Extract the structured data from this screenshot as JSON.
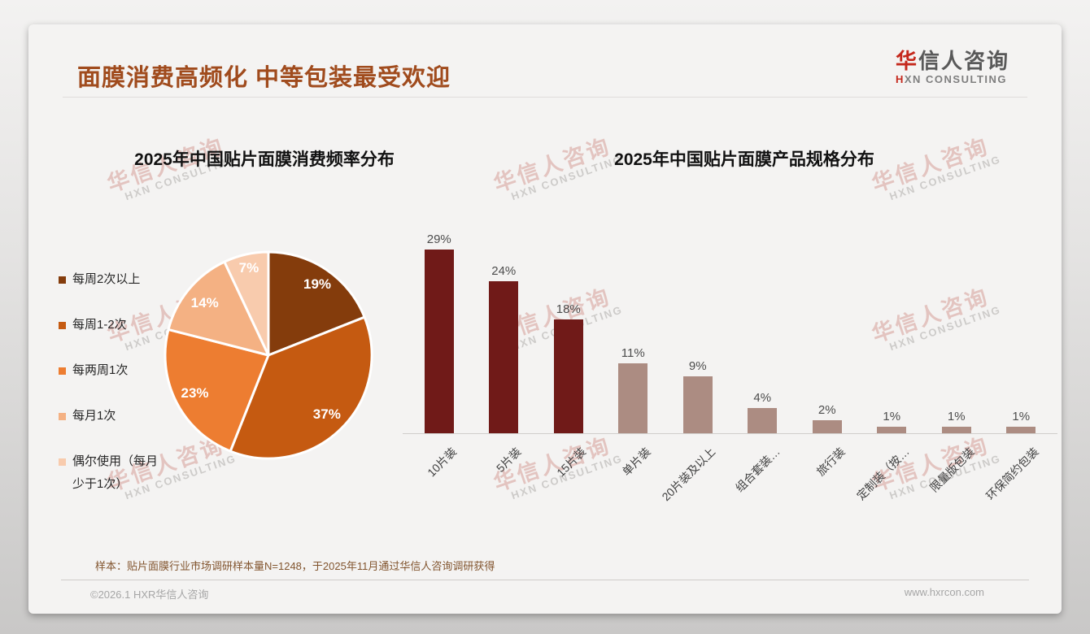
{
  "header": {
    "title": "面膜消费高频化 中等包装最受欢迎"
  },
  "logo": {
    "cn_first": "华",
    "cn_rest": "信人咨询",
    "en_first": "H",
    "en_rest": "XN CONSULTING"
  },
  "watermark": {
    "line1": "华信人咨询",
    "line2": "HXN CONSULTING"
  },
  "chart_data": [
    {
      "type": "pie",
      "title": "2025年中国贴片面膜消费频率分布",
      "labels": [
        "每周2次以上",
        "每周1-2次",
        "每两周1次",
        "每月1次",
        "偶尔使用（每月少于1次）"
      ],
      "values": [
        19,
        37,
        23,
        14,
        7
      ],
      "unit": "%",
      "colors": [
        "#843C0C",
        "#C55A11",
        "#ED7D31",
        "#F4B183",
        "#F8CBAD"
      ],
      "data_label_color": "#FFFFFF",
      "legend_position": "left",
      "start_angle_deg": 0,
      "direction": "clockwise"
    },
    {
      "type": "bar",
      "title": "2025年中国贴片面膜产品规格分布",
      "categories": [
        "10片装",
        "5片装",
        "15片装",
        "单片装",
        "20片装及以上",
        "组合套装…",
        "旅行装",
        "定制装（按…",
        "限量版包装",
        "环保简约包装"
      ],
      "values": [
        29,
        24,
        18,
        11,
        9,
        4,
        2,
        1,
        1,
        1
      ],
      "unit": "%",
      "highlight_count": 3,
      "highlight_color": "#701A18",
      "base_color": "#AC8C82",
      "value_label_color": "#4D4D4D",
      "xlabel": "",
      "ylabel": "",
      "ylim": [
        0,
        30
      ],
      "grid": false,
      "data_labels": true,
      "label_rotation_deg": 45
    }
  ],
  "footer": {
    "note": "样本：贴片面膜行业市场调研样本量N=1248，于2025年11月通过华信人咨询调研获得",
    "copyright": "©2026.1 HXR华信人咨询",
    "website": "www.hxrcon.com"
  },
  "colors": {
    "title_accent": "#A04B1D",
    "logo_red": "#C5281C",
    "slide_background": "#F4F3F2"
  }
}
